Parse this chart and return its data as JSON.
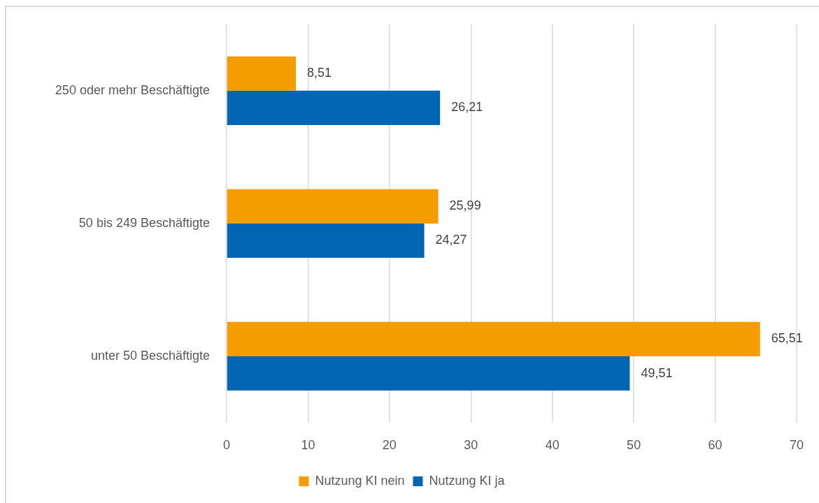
{
  "chart_data": {
    "type": "bar",
    "orientation": "horizontal",
    "categories": [
      "250 oder mehr Beschäftigte",
      "50 bis 249 Beschäftigte",
      "unter 50 Beschäftigte"
    ],
    "series": [
      {
        "name": "Nutzung KI nein",
        "color": "#f49c00",
        "values": [
          8.51,
          25.99,
          65.51
        ],
        "value_labels": [
          "8,51",
          "25,99",
          "65,51"
        ]
      },
      {
        "name": "Nutzung KI ja",
        "color": "#0066b3",
        "values": [
          26.21,
          24.27,
          49.51
        ],
        "value_labels": [
          "26,21",
          "24,27",
          "49,51"
        ]
      }
    ],
    "xlim": [
      0,
      70
    ],
    "xticks": [
      0,
      10,
      20,
      30,
      40,
      50,
      60,
      70
    ],
    "grid": "x",
    "legend": "bottom"
  }
}
